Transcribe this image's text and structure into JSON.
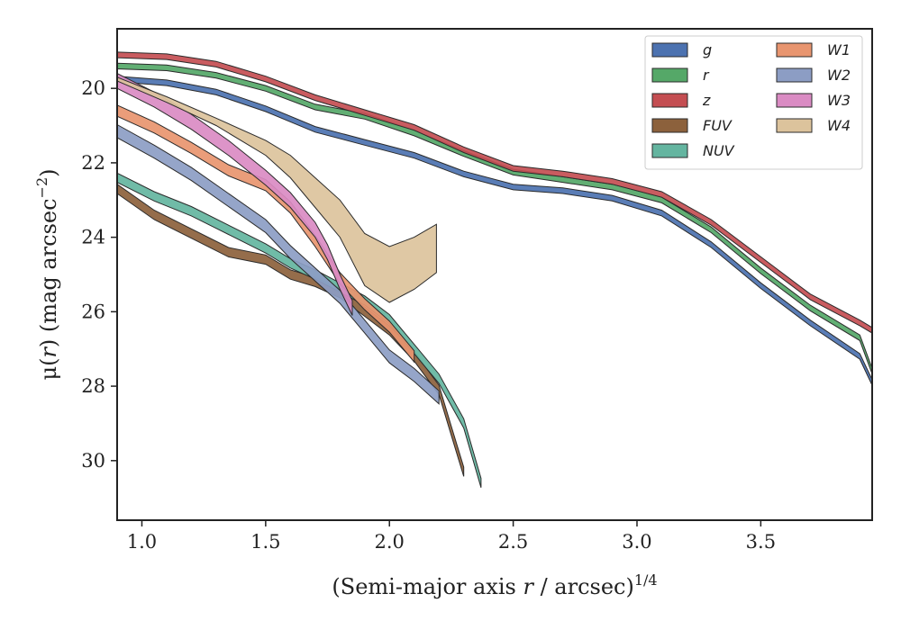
{
  "chart_data": {
    "type": "area",
    "xlabel": {
      "pre": "(Semi-major axis ",
      "var": "r",
      "post": " / arcsec)",
      "sup": "1/4"
    },
    "ylabel": {
      "pre": "μ(",
      "var": "r",
      "post": ") (mag arcsec",
      "sup": "−2",
      "end": ")"
    },
    "xlim": [
      0.9,
      3.95
    ],
    "ylim": [
      31.6,
      18.4
    ],
    "y_inverted": true,
    "xticks": [
      1.0,
      1.5,
      2.0,
      2.5,
      3.0,
      3.5
    ],
    "xtick_labels": [
      "1.0",
      "1.5",
      "2.0",
      "2.5",
      "3.0",
      "3.5"
    ],
    "yticks": [
      20,
      22,
      24,
      26,
      28,
      30
    ],
    "ytick_labels": [
      "20",
      "22",
      "24",
      "26",
      "28",
      "30"
    ],
    "grid": false,
    "legend_position": "top-right",
    "series": [
      {
        "name": "g",
        "color": "#4c72b0",
        "x": [
          0.9,
          1.1,
          1.3,
          1.5,
          1.7,
          1.9,
          2.1,
          2.3,
          2.5,
          2.7,
          2.9,
          3.1,
          3.3,
          3.5,
          3.7,
          3.9,
          3.95
        ],
        "y": [
          19.75,
          19.85,
          20.1,
          20.55,
          21.1,
          21.45,
          21.8,
          22.3,
          22.65,
          22.75,
          22.95,
          23.35,
          24.2,
          25.3,
          26.3,
          27.2,
          27.9
        ],
        "width": 0.15
      },
      {
        "name": "r",
        "color": "#55a868",
        "x": [
          0.9,
          1.1,
          1.3,
          1.5,
          1.7,
          1.9,
          2.1,
          2.3,
          2.5,
          2.7,
          2.9,
          3.1,
          3.3,
          3.5,
          3.7,
          3.9,
          3.95
        ],
        "y": [
          19.4,
          19.45,
          19.65,
          20.0,
          20.5,
          20.75,
          21.2,
          21.75,
          22.25,
          22.45,
          22.65,
          23.0,
          23.8,
          24.9,
          25.9,
          26.7,
          27.6
        ],
        "width": 0.15
      },
      {
        "name": "z",
        "color": "#c44e52",
        "x": [
          0.9,
          1.1,
          1.3,
          1.5,
          1.7,
          1.9,
          2.1,
          2.3,
          2.5,
          2.7,
          2.9,
          3.1,
          3.3,
          3.5,
          3.7,
          3.9,
          3.95
        ],
        "y": [
          19.1,
          19.15,
          19.35,
          19.75,
          20.25,
          20.65,
          21.05,
          21.65,
          22.15,
          22.3,
          22.5,
          22.85,
          23.6,
          24.6,
          25.6,
          26.3,
          26.5
        ],
        "width": 0.15
      },
      {
        "name": "FUV",
        "color": "#8c613c",
        "x": [
          0.9,
          1.05,
          1.2,
          1.35,
          1.5,
          1.6,
          1.7,
          1.8,
          1.9,
          2.0,
          2.1,
          2.2,
          2.25,
          2.3
        ],
        "y": [
          22.7,
          23.4,
          23.9,
          24.4,
          24.6,
          25.0,
          25.2,
          25.5,
          26.0,
          26.5,
          27.2,
          28.1,
          29.2,
          30.3
        ],
        "width": 0.25
      },
      {
        "name": "NUV",
        "color": "#64b5a0",
        "x": [
          0.9,
          1.05,
          1.2,
          1.35,
          1.5,
          1.6,
          1.7,
          1.8,
          1.9,
          2.0,
          2.1,
          2.2,
          2.3,
          2.37
        ],
        "y": [
          22.4,
          22.9,
          23.3,
          23.8,
          24.3,
          24.7,
          25.0,
          25.35,
          25.7,
          26.2,
          27.0,
          27.8,
          29.0,
          30.6
        ],
        "width": 0.25
      },
      {
        "name": "W1",
        "color": "#e8956f",
        "x": [
          0.9,
          1.05,
          1.2,
          1.35,
          1.5,
          1.6,
          1.7,
          1.8,
          1.9,
          2.0,
          2.05,
          2.1
        ],
        "y": [
          20.6,
          21.05,
          21.6,
          22.2,
          22.6,
          23.2,
          24.1,
          25.1,
          25.8,
          26.4,
          26.8,
          27.2
        ],
        "width": 0.3
      },
      {
        "name": "W2",
        "color": "#8c9dc4",
        "x": [
          0.9,
          1.05,
          1.2,
          1.35,
          1.5,
          1.6,
          1.7,
          1.8,
          1.9,
          2.0,
          2.1,
          2.2
        ],
        "y": [
          21.15,
          21.7,
          22.3,
          23.0,
          23.7,
          24.4,
          25.0,
          25.6,
          26.4,
          27.2,
          27.7,
          28.3
        ],
        "width": 0.35
      },
      {
        "name": "W3",
        "color": "#da8bc3",
        "x": [
          0.9,
          1.05,
          1.2,
          1.35,
          1.5,
          1.6,
          1.7,
          1.75,
          1.8,
          1.85
        ],
        "y": [
          19.8,
          20.3,
          20.9,
          21.6,
          22.4,
          23.0,
          23.8,
          24.4,
          25.2,
          25.9
        ],
        "width": 0.4
      },
      {
        "name": "W4",
        "color": "#dcc39c",
        "x": [
          0.9,
          1.1,
          1.3,
          1.5,
          1.6,
          1.7,
          1.8,
          1.9,
          2.0,
          2.1,
          2.19
        ],
        "y": [
          19.75,
          20.3,
          20.9,
          21.6,
          22.1,
          22.8,
          23.5,
          24.6,
          25.0,
          24.7,
          24.3
        ],
        "width": [
          0.1,
          0.15,
          0.2,
          0.4,
          0.6,
          0.8,
          1.0,
          1.4,
          1.5,
          1.4,
          1.3
        ]
      }
    ]
  }
}
